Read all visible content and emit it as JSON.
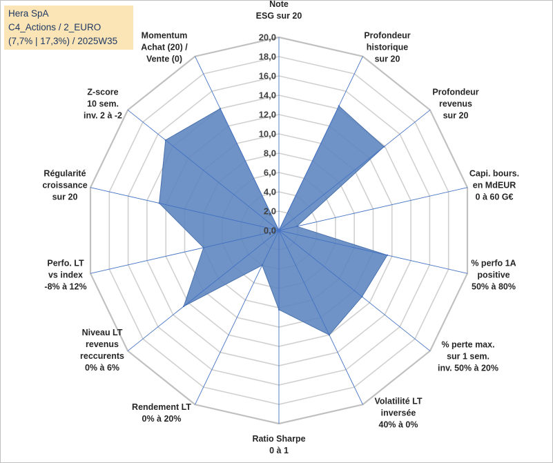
{
  "header": {
    "lines": [
      "Hera SpA",
      "C4_Actions / 2_EURO",
      "(7,7% | 17,3%) / 2025W35"
    ]
  },
  "colors": {
    "series_fill": "#5b84be",
    "series_stroke": "#4a72ad",
    "grid": "#d0d0d0",
    "spoke": "#4472c4",
    "header_bg": "#fbe5b6"
  },
  "chart_data": {
    "type": "radar",
    "title": "",
    "rmax": 20,
    "tick_step": 2,
    "tick_labels": [
      "0,0",
      "2,0",
      "4,0",
      "6,0",
      "8,0",
      "10,0",
      "12,0",
      "14,0",
      "16,0",
      "18,0",
      "20,0"
    ],
    "categories": [
      [
        "Note",
        "ESG sur 20"
      ],
      [
        "Profondeur",
        "historique",
        "sur 20"
      ],
      [
        "Profondeur",
        "revenus",
        "sur 20"
      ],
      [
        "Capi. bours.",
        "en MdEUR",
        "0 à 60 G€"
      ],
      [
        "% perfo 1A",
        "positive",
        "50% à 80%"
      ],
      [
        "% perte max.",
        "sur 1 sem.",
        "inv. 50% à 20%"
      ],
      [
        "Volatilité LT",
        "inversée",
        "40% à 0%"
      ],
      [
        "Ratio Sharpe",
        "0 à 1"
      ],
      [
        "Rendement LT",
        "0% à 20%"
      ],
      [
        "Niveau LT",
        "revenus",
        "reccurents",
        "0% à 6%"
      ],
      [
        "Perfo. LT",
        "vs index",
        "-8% à 12%"
      ],
      [
        "Régularité",
        "croissance",
        "sur 20"
      ],
      [
        "Z-score",
        "10 sem.",
        "inv. 2 à -2"
      ],
      [
        "Momentum",
        "Achat (20) /",
        "Vente (0)"
      ]
    ],
    "series": [
      {
        "values": [
          0.0,
          14.3,
          13.9,
          1.9,
          11.5,
          11.0,
          12.0,
          8.2,
          4.0,
          12.6,
          8.0,
          12.7,
          15.0,
          14.0
        ]
      }
    ]
  }
}
